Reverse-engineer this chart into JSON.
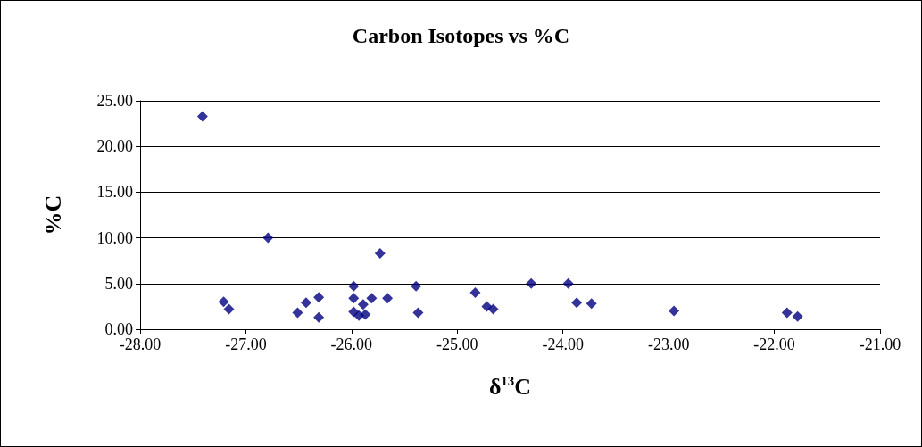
{
  "chart_data": {
    "type": "scatter",
    "title": "Carbon Isotopes vs %C",
    "xlabel": "δ$^{13}$C",
    "ylabel": "%C",
    "x": [
      -27.41,
      -27.21,
      -27.16,
      -26.79,
      -26.51,
      -26.43,
      -26.31,
      -26.31,
      -25.98,
      -25.98,
      -25.98,
      -25.93,
      -25.89,
      -25.87,
      -25.81,
      -25.73,
      -25.66,
      -25.39,
      -25.37,
      -24.83,
      -24.72,
      -24.66,
      -24.3,
      -23.95,
      -23.87,
      -23.73,
      -22.95,
      -21.88,
      -21.78
    ],
    "values": [
      23.3,
      3.0,
      2.2,
      10.0,
      1.8,
      2.9,
      3.5,
      1.3,
      4.7,
      3.4,
      1.9,
      1.5,
      2.7,
      1.6,
      3.4,
      8.3,
      3.4,
      4.7,
      1.8,
      4.0,
      2.5,
      2.2,
      5.0,
      5.0,
      2.9,
      2.8,
      2.0,
      1.8,
      1.4
    ],
    "color": "#000080",
    "marker": "diamond",
    "grid": "y",
    "xlim": [
      -28,
      -21
    ],
    "xticks": [
      {
        "value": -28,
        "label": "-28.00"
      },
      {
        "value": -27,
        "label": "-27.00"
      },
      {
        "value": -26,
        "label": "-26.00"
      },
      {
        "value": -25,
        "label": "-25.00"
      },
      {
        "value": -24,
        "label": "-24.00"
      },
      {
        "value": -23,
        "label": "-23.00"
      },
      {
        "value": -22,
        "label": "-22.00"
      },
      {
        "value": -21,
        "label": "-21.00"
      }
    ],
    "ylim": [
      0,
      25
    ],
    "yticks": [
      {
        "value": 0,
        "label": "0.00"
      },
      {
        "value": 5,
        "label": "5.00"
      },
      {
        "value": 10,
        "label": "10.00"
      },
      {
        "value": 15,
        "label": "15.00"
      },
      {
        "value": 20,
        "label": "20.00"
      },
      {
        "value": 25,
        "label": "25.00"
      }
    ]
  }
}
